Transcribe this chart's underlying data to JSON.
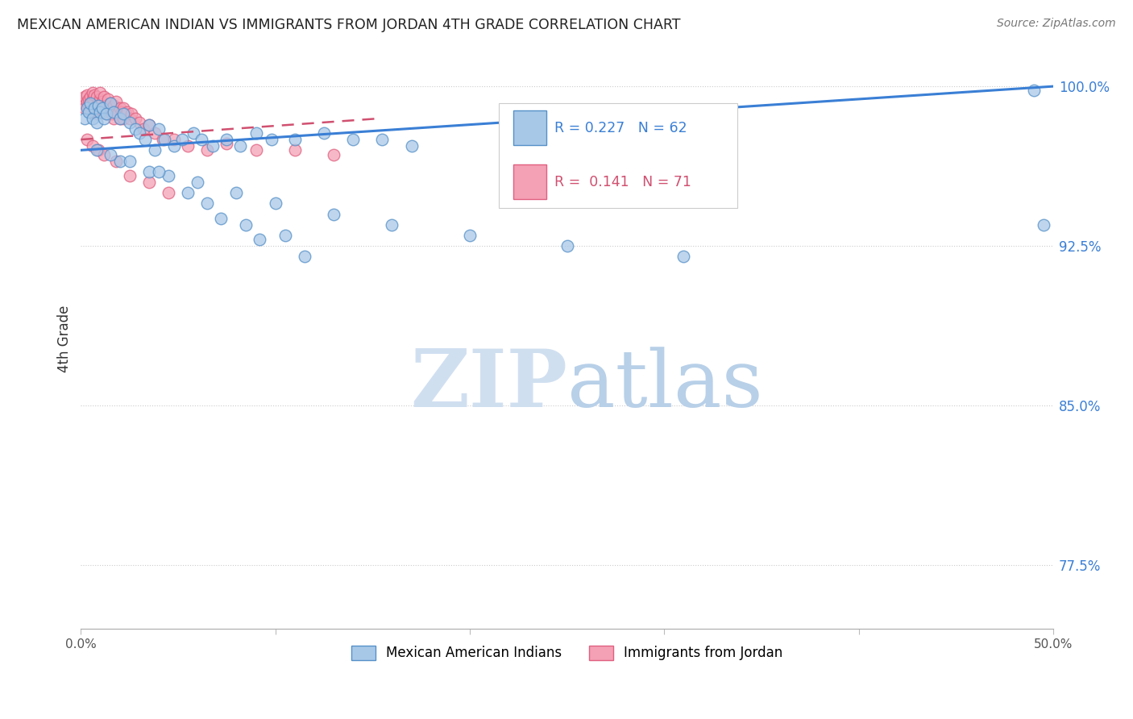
{
  "title": "MEXICAN AMERICAN INDIAN VS IMMIGRANTS FROM JORDAN 4TH GRADE CORRELATION CHART",
  "source": "Source: ZipAtlas.com",
  "ylabel": "4th Grade",
  "yticks": [
    77.5,
    85.0,
    92.5,
    100.0
  ],
  "ytick_labels": [
    "77.5%",
    "85.0%",
    "92.5%",
    "100.0%"
  ],
  "xlim": [
    0.0,
    0.5
  ],
  "ylim": [
    74.5,
    101.8
  ],
  "blue_R": 0.227,
  "blue_N": 62,
  "pink_R": 0.141,
  "pink_N": 71,
  "blue_color": "#a8c8e8",
  "pink_color": "#f4a0b5",
  "blue_edge_color": "#5590c8",
  "pink_edge_color": "#e06080",
  "blue_line_color": "#3a7fd5",
  "pink_line_color": "#d05070",
  "watermark_zip": "ZIP",
  "watermark_atlas": "atlas",
  "watermark_color_zip": "#d0dff0",
  "watermark_color_atlas": "#b8d0e8",
  "legend_blue_label": "Mexican American Indians",
  "legend_pink_label": "Immigrants from Jordan",
  "blue_line_x": [
    0.0,
    0.5
  ],
  "blue_line_y": [
    97.0,
    100.0
  ],
  "pink_line_x": [
    0.0,
    0.155
  ],
  "pink_line_y": [
    97.5,
    98.5
  ],
  "blue_scatter_x": [
    0.002,
    0.003,
    0.004,
    0.005,
    0.006,
    0.007,
    0.008,
    0.009,
    0.01,
    0.011,
    0.012,
    0.013,
    0.015,
    0.017,
    0.02,
    0.022,
    0.025,
    0.028,
    0.03,
    0.033,
    0.035,
    0.038,
    0.04,
    0.043,
    0.048,
    0.052,
    0.058,
    0.062,
    0.068,
    0.075,
    0.082,
    0.09,
    0.098,
    0.11,
    0.125,
    0.14,
    0.155,
    0.17,
    0.02,
    0.045,
    0.065,
    0.085,
    0.105,
    0.035,
    0.055,
    0.072,
    0.092,
    0.115,
    0.008,
    0.015,
    0.025,
    0.04,
    0.06,
    0.08,
    0.1,
    0.13,
    0.16,
    0.2,
    0.25,
    0.31,
    0.49,
    0.495
  ],
  "blue_scatter_y": [
    98.5,
    99.0,
    98.8,
    99.2,
    98.5,
    99.0,
    98.3,
    99.1,
    98.8,
    99.0,
    98.5,
    98.7,
    99.2,
    98.8,
    98.5,
    98.7,
    98.3,
    98.0,
    97.8,
    97.5,
    98.2,
    97.0,
    98.0,
    97.5,
    97.2,
    97.5,
    97.8,
    97.5,
    97.2,
    97.5,
    97.2,
    97.8,
    97.5,
    97.5,
    97.8,
    97.5,
    97.5,
    97.2,
    96.5,
    95.8,
    94.5,
    93.5,
    93.0,
    96.0,
    95.0,
    93.8,
    92.8,
    92.0,
    97.0,
    96.8,
    96.5,
    96.0,
    95.5,
    95.0,
    94.5,
    94.0,
    93.5,
    93.0,
    92.5,
    92.0,
    99.8,
    93.5
  ],
  "pink_scatter_x": [
    0.001,
    0.002,
    0.002,
    0.003,
    0.003,
    0.004,
    0.004,
    0.005,
    0.005,
    0.005,
    0.006,
    0.006,
    0.006,
    0.007,
    0.007,
    0.007,
    0.008,
    0.008,
    0.008,
    0.009,
    0.009,
    0.01,
    0.01,
    0.01,
    0.011,
    0.011,
    0.012,
    0.012,
    0.013,
    0.013,
    0.014,
    0.014,
    0.015,
    0.015,
    0.016,
    0.016,
    0.017,
    0.017,
    0.018,
    0.018,
    0.019,
    0.02,
    0.02,
    0.021,
    0.022,
    0.022,
    0.023,
    0.024,
    0.025,
    0.026,
    0.028,
    0.03,
    0.032,
    0.035,
    0.038,
    0.042,
    0.048,
    0.055,
    0.065,
    0.075,
    0.09,
    0.11,
    0.13,
    0.003,
    0.006,
    0.009,
    0.012,
    0.018,
    0.025,
    0.035,
    0.045
  ],
  "pink_scatter_y": [
    99.2,
    99.5,
    99.0,
    99.3,
    99.6,
    99.1,
    99.4,
    98.8,
    99.5,
    99.2,
    99.0,
    99.4,
    99.7,
    98.9,
    99.3,
    99.6,
    98.7,
    99.1,
    99.5,
    98.8,
    99.2,
    99.0,
    99.4,
    99.7,
    98.9,
    99.3,
    98.8,
    99.5,
    98.7,
    99.1,
    99.0,
    99.4,
    98.8,
    99.2,
    98.7,
    99.0,
    98.5,
    99.1,
    98.8,
    99.3,
    98.7,
    99.0,
    98.5,
    98.8,
    98.5,
    99.0,
    98.7,
    98.8,
    98.5,
    98.7,
    98.5,
    98.3,
    98.0,
    98.2,
    97.8,
    97.5,
    97.5,
    97.2,
    97.0,
    97.3,
    97.0,
    97.0,
    96.8,
    97.5,
    97.2,
    97.0,
    96.8,
    96.5,
    95.8,
    95.5,
    95.0
  ]
}
